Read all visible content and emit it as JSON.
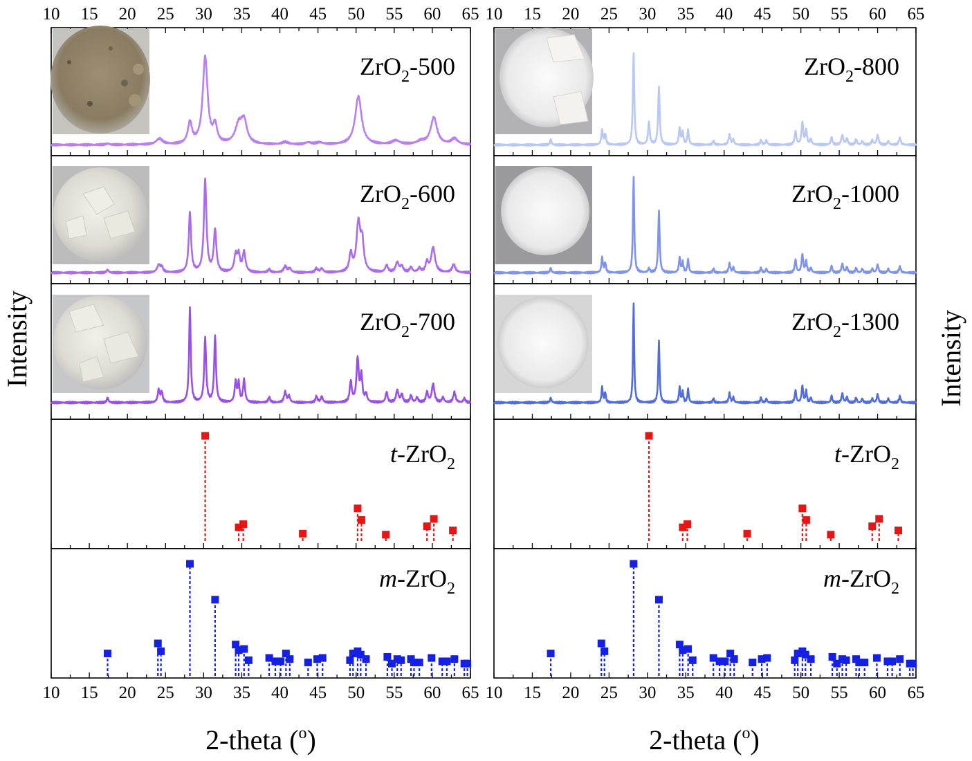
{
  "figure": {
    "x_axis_label": "2-theta (",
    "x_axis_label_sup": "o",
    "x_axis_label_end": ")",
    "y_axis_label": "Intensity",
    "x_ticks": [
      "10",
      "15",
      "20",
      "25",
      "30",
      "35",
      "40",
      "45",
      "50",
      "55",
      "60",
      "65"
    ]
  },
  "colors": {
    "zro2_500": "#b97ef0",
    "zro2_600": "#ab6cec",
    "zro2_700": "#9a4fe6",
    "zro2_800": "#b9c7f5",
    "zro2_1000": "#7e93ec",
    "zro2_1300": "#4f6ce0",
    "tetragonal": "#e81515",
    "monoclinic": "#1420e6"
  },
  "icons": {
    "sample_photo": "powder-sample-photo-icon"
  },
  "panels": {
    "zro2_500": {
      "label_main": "ZrO",
      "label_sub": "2",
      "label_suffix": "-500"
    },
    "zro2_600": {
      "label_main": "ZrO",
      "label_sub": "2",
      "label_suffix": "-600"
    },
    "zro2_700": {
      "label_main": "ZrO",
      "label_sub": "2",
      "label_suffix": "-700"
    },
    "zro2_800": {
      "label_main": "ZrO",
      "label_sub": "2",
      "label_suffix": "-800"
    },
    "zro2_1000": {
      "label_main": "ZrO",
      "label_sub": "2",
      "label_suffix": "-1000"
    },
    "zro2_1300": {
      "label_main": "ZrO",
      "label_sub": "2",
      "label_suffix": "-1300"
    },
    "t_ref": {
      "label_prefix": "t",
      "label_main": "-ZrO",
      "label_sub": "2"
    },
    "m_ref": {
      "label_prefix": "m",
      "label_main": "-ZrO",
      "label_sub": "2"
    }
  },
  "chart_data": {
    "type": "line",
    "title": "",
    "xlabel": "2-theta (o)",
    "ylabel": "Intensity",
    "xlim": [
      10,
      65
    ],
    "x_ticks": [
      10,
      15,
      20,
      25,
      30,
      35,
      40,
      45,
      50,
      55,
      60,
      65
    ],
    "series": [
      {
        "name": "ZrO2-500",
        "column": "left",
        "row": 0,
        "color_key": "zro2_500",
        "baseline": 0.04,
        "peaks": [
          [
            17.4,
            0.012,
            0.25
          ],
          [
            24.2,
            0.06,
            0.5
          ],
          [
            28.2,
            0.22,
            0.32
          ],
          [
            30.2,
            0.9,
            0.38
          ],
          [
            31.5,
            0.18,
            0.3
          ],
          [
            34.6,
            0.19,
            0.55
          ],
          [
            35.3,
            0.22,
            0.45
          ],
          [
            40.7,
            0.025,
            0.5
          ],
          [
            43.7,
            0.02,
            0.5
          ],
          [
            45.2,
            0.02,
            0.5
          ],
          [
            50.3,
            0.5,
            0.5
          ],
          [
            55.2,
            0.04,
            0.6
          ],
          [
            58.5,
            0.03,
            0.6
          ],
          [
            60.2,
            0.28,
            0.5
          ],
          [
            62.9,
            0.06,
            0.5
          ]
        ]
      },
      {
        "name": "ZrO2-600",
        "column": "left",
        "row": 1,
        "color_key": "zro2_600",
        "baseline": 0.04,
        "peaks": [
          [
            17.4,
            0.03,
            0.15
          ],
          [
            24.1,
            0.07,
            0.25
          ],
          [
            24.5,
            0.05,
            0.2
          ],
          [
            28.2,
            0.6,
            0.18
          ],
          [
            30.2,
            0.92,
            0.2
          ],
          [
            31.5,
            0.42,
            0.2
          ],
          [
            34.2,
            0.17,
            0.22
          ],
          [
            34.6,
            0.16,
            0.2
          ],
          [
            35.3,
            0.2,
            0.22
          ],
          [
            38.6,
            0.03,
            0.2
          ],
          [
            40.7,
            0.06,
            0.25
          ],
          [
            41.3,
            0.04,
            0.2
          ],
          [
            44.8,
            0.04,
            0.2
          ],
          [
            45.5,
            0.04,
            0.2
          ],
          [
            49.3,
            0.18,
            0.22
          ],
          [
            50.3,
            0.48,
            0.3
          ],
          [
            50.8,
            0.28,
            0.25
          ],
          [
            54.0,
            0.07,
            0.2
          ],
          [
            55.4,
            0.1,
            0.25
          ],
          [
            56.0,
            0.06,
            0.2
          ],
          [
            57.2,
            0.05,
            0.2
          ],
          [
            58.3,
            0.04,
            0.2
          ],
          [
            59.3,
            0.1,
            0.2
          ],
          [
            60.1,
            0.25,
            0.3
          ],
          [
            62.8,
            0.08,
            0.25
          ]
        ]
      },
      {
        "name": "ZrO2-700",
        "column": "left",
        "row": 2,
        "color_key": "zro2_700",
        "baseline": 0.04,
        "peaks": [
          [
            17.4,
            0.05,
            0.12
          ],
          [
            24.1,
            0.12,
            0.15
          ],
          [
            24.5,
            0.1,
            0.15
          ],
          [
            28.2,
            0.92,
            0.13
          ],
          [
            30.2,
            0.62,
            0.15
          ],
          [
            31.5,
            0.64,
            0.14
          ],
          [
            34.2,
            0.2,
            0.15
          ],
          [
            34.6,
            0.18,
            0.13
          ],
          [
            35.3,
            0.22,
            0.15
          ],
          [
            38.6,
            0.05,
            0.15
          ],
          [
            40.7,
            0.1,
            0.18
          ],
          [
            41.2,
            0.06,
            0.15
          ],
          [
            44.8,
            0.06,
            0.15
          ],
          [
            45.5,
            0.06,
            0.15
          ],
          [
            49.3,
            0.2,
            0.16
          ],
          [
            50.2,
            0.42,
            0.18
          ],
          [
            50.7,
            0.25,
            0.15
          ],
          [
            51.3,
            0.08,
            0.15
          ],
          [
            54.0,
            0.1,
            0.15
          ],
          [
            55.4,
            0.12,
            0.18
          ],
          [
            56.0,
            0.08,
            0.15
          ],
          [
            57.2,
            0.07,
            0.15
          ],
          [
            58.0,
            0.05,
            0.15
          ],
          [
            59.3,
            0.1,
            0.15
          ],
          [
            60.1,
            0.18,
            0.2
          ],
          [
            61.4,
            0.05,
            0.15
          ],
          [
            62.9,
            0.1,
            0.18
          ],
          [
            64.2,
            0.04,
            0.15
          ]
        ]
      },
      {
        "name": "ZrO2-800",
        "column": "right",
        "row": 0,
        "color_key": "zro2_800",
        "baseline": 0.04,
        "peaks": [
          [
            17.4,
            0.06,
            0.1
          ],
          [
            24.1,
            0.15,
            0.12
          ],
          [
            24.5,
            0.11,
            0.12
          ],
          [
            28.2,
            0.95,
            0.11
          ],
          [
            30.2,
            0.23,
            0.13
          ],
          [
            31.5,
            0.6,
            0.12
          ],
          [
            34.2,
            0.17,
            0.12
          ],
          [
            34.6,
            0.12,
            0.12
          ],
          [
            35.3,
            0.15,
            0.12
          ],
          [
            38.6,
            0.04,
            0.12
          ],
          [
            40.7,
            0.1,
            0.15
          ],
          [
            41.2,
            0.05,
            0.12
          ],
          [
            44.8,
            0.05,
            0.12
          ],
          [
            45.5,
            0.05,
            0.12
          ],
          [
            49.3,
            0.14,
            0.13
          ],
          [
            50.2,
            0.23,
            0.14
          ],
          [
            50.7,
            0.14,
            0.12
          ],
          [
            51.3,
            0.06,
            0.12
          ],
          [
            54.0,
            0.08,
            0.12
          ],
          [
            55.4,
            0.1,
            0.15
          ],
          [
            56.0,
            0.07,
            0.12
          ],
          [
            57.2,
            0.06,
            0.12
          ],
          [
            58.0,
            0.04,
            0.12
          ],
          [
            59.3,
            0.05,
            0.12
          ],
          [
            60.0,
            0.1,
            0.15
          ],
          [
            61.4,
            0.04,
            0.12
          ],
          [
            62.9,
            0.07,
            0.15
          ]
        ]
      },
      {
        "name": "ZrO2-1000",
        "column": "right",
        "row": 1,
        "color_key": "zro2_1000",
        "baseline": 0.04,
        "peaks": [
          [
            17.4,
            0.05,
            0.1
          ],
          [
            24.1,
            0.15,
            0.11
          ],
          [
            24.5,
            0.1,
            0.11
          ],
          [
            28.2,
            0.96,
            0.1
          ],
          [
            30.2,
            0.04,
            0.12
          ],
          [
            31.5,
            0.62,
            0.11
          ],
          [
            34.2,
            0.15,
            0.11
          ],
          [
            34.6,
            0.1,
            0.11
          ],
          [
            35.3,
            0.13,
            0.11
          ],
          [
            38.6,
            0.04,
            0.11
          ],
          [
            40.7,
            0.09,
            0.13
          ],
          [
            41.2,
            0.05,
            0.11
          ],
          [
            44.8,
            0.05,
            0.11
          ],
          [
            45.5,
            0.04,
            0.11
          ],
          [
            49.3,
            0.13,
            0.12
          ],
          [
            50.2,
            0.18,
            0.13
          ],
          [
            50.7,
            0.11,
            0.11
          ],
          [
            51.3,
            0.05,
            0.11
          ],
          [
            54.0,
            0.07,
            0.11
          ],
          [
            55.4,
            0.09,
            0.13
          ],
          [
            56.0,
            0.06,
            0.11
          ],
          [
            57.2,
            0.05,
            0.11
          ],
          [
            58.0,
            0.04,
            0.11
          ],
          [
            59.3,
            0.04,
            0.11
          ],
          [
            60.0,
            0.08,
            0.13
          ],
          [
            61.4,
            0.04,
            0.11
          ],
          [
            62.9,
            0.06,
            0.13
          ]
        ]
      },
      {
        "name": "ZrO2-1300",
        "column": "right",
        "row": 2,
        "color_key": "zro2_1300",
        "baseline": 0.04,
        "peaks": [
          [
            17.4,
            0.05,
            0.1
          ],
          [
            24.1,
            0.15,
            0.1
          ],
          [
            24.5,
            0.1,
            0.1
          ],
          [
            28.2,
            0.96,
            0.09
          ],
          [
            31.5,
            0.6,
            0.1
          ],
          [
            34.2,
            0.15,
            0.1
          ],
          [
            34.6,
            0.1,
            0.1
          ],
          [
            35.3,
            0.13,
            0.1
          ],
          [
            38.6,
            0.04,
            0.1
          ],
          [
            40.7,
            0.09,
            0.12
          ],
          [
            41.2,
            0.05,
            0.1
          ],
          [
            44.8,
            0.05,
            0.1
          ],
          [
            45.5,
            0.04,
            0.1
          ],
          [
            49.3,
            0.12,
            0.11
          ],
          [
            50.2,
            0.16,
            0.12
          ],
          [
            50.7,
            0.11,
            0.1
          ],
          [
            51.3,
            0.05,
            0.1
          ],
          [
            54.0,
            0.07,
            0.1
          ],
          [
            55.4,
            0.09,
            0.12
          ],
          [
            56.0,
            0.06,
            0.1
          ],
          [
            57.2,
            0.05,
            0.1
          ],
          [
            58.0,
            0.04,
            0.1
          ],
          [
            59.3,
            0.04,
            0.1
          ],
          [
            60.0,
            0.08,
            0.12
          ],
          [
            61.4,
            0.04,
            0.1
          ],
          [
            62.9,
            0.06,
            0.12
          ]
        ]
      }
    ],
    "reference_patterns": [
      {
        "name": "t-ZrO2",
        "color_key": "tetragonal",
        "peaks": [
          [
            30.2,
            100
          ],
          [
            34.6,
            13
          ],
          [
            35.2,
            16
          ],
          [
            43.0,
            7
          ],
          [
            50.2,
            31
          ],
          [
            50.7,
            20
          ],
          [
            53.9,
            6
          ],
          [
            59.3,
            14
          ],
          [
            60.2,
            21
          ],
          [
            62.7,
            10
          ]
        ]
      },
      {
        "name": "m-ZrO2",
        "color_key": "monoclinic",
        "peaks": [
          [
            17.4,
            20
          ],
          [
            24.0,
            29
          ],
          [
            24.4,
            22
          ],
          [
            28.2,
            100
          ],
          [
            31.5,
            68
          ],
          [
            34.2,
            28
          ],
          [
            34.6,
            23
          ],
          [
            35.3,
            24
          ],
          [
            35.9,
            14
          ],
          [
            38.6,
            16
          ],
          [
            39.4,
            13
          ],
          [
            40.1,
            13
          ],
          [
            40.8,
            20
          ],
          [
            41.3,
            15
          ],
          [
            43.7,
            12
          ],
          [
            44.9,
            15
          ],
          [
            45.6,
            16
          ],
          [
            49.2,
            14
          ],
          [
            49.6,
            20
          ],
          [
            50.2,
            22
          ],
          [
            50.6,
            19
          ],
          [
            51.3,
            15
          ],
          [
            54.1,
            17
          ],
          [
            54.7,
            11
          ],
          [
            55.4,
            15
          ],
          [
            55.9,
            14
          ],
          [
            57.2,
            15
          ],
          [
            57.6,
            12
          ],
          [
            58.3,
            12
          ],
          [
            59.9,
            16
          ],
          [
            61.3,
            13
          ],
          [
            61.9,
            13
          ],
          [
            62.9,
            15
          ],
          [
            64.2,
            11
          ],
          [
            64.6,
            11
          ]
        ]
      }
    ]
  }
}
